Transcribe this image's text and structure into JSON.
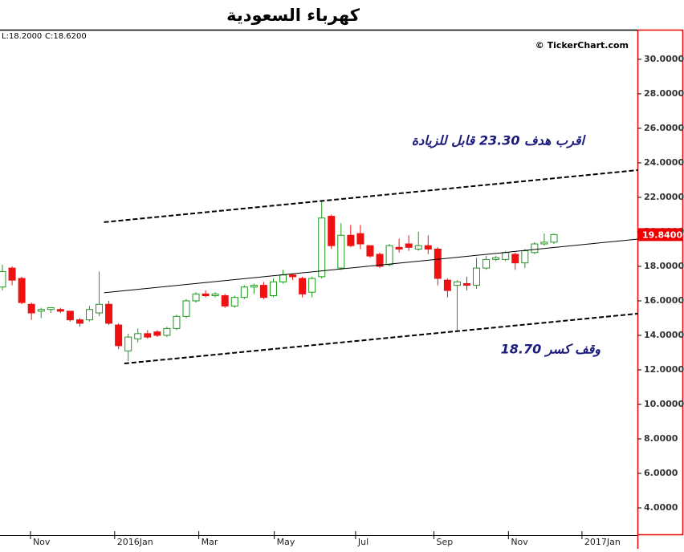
{
  "chart_data": {
    "type": "candlestick",
    "title": "كهرباء السعودية",
    "info": [
      "L:18.2000",
      "C:18.6200"
    ],
    "watermark": "© TickerChart.com",
    "up_color": "#1a9a1a",
    "down_color": "#ee1111",
    "x": [
      0,
      1,
      2,
      3,
      4,
      5,
      6,
      7,
      8,
      9,
      10,
      11,
      12,
      13,
      14,
      15,
      16,
      17,
      18,
      19,
      20,
      21,
      22,
      23,
      24,
      25,
      26,
      27,
      28,
      29,
      30,
      31,
      32,
      33,
      34,
      35,
      36,
      37,
      38,
      39,
      40,
      41,
      42,
      43,
      44,
      45,
      46,
      47,
      48,
      49,
      50,
      51,
      52,
      53,
      54,
      55,
      56,
      57
    ],
    "open": [
      16.8,
      17.9,
      17.3,
      15.8,
      15.4,
      15.5,
      15.5,
      15.4,
      14.9,
      14.9,
      15.3,
      15.8,
      14.6,
      13.1,
      13.8,
      14.1,
      14.2,
      14.0,
      14.4,
      15.1,
      16.0,
      16.4,
      16.3,
      16.3,
      15.7,
      16.2,
      16.8,
      16.9,
      16.3,
      17.1,
      17.5,
      17.3,
      16.5,
      17.4,
      20.9,
      17.9,
      19.8,
      19.9,
      19.2,
      18.7,
      18.1,
      19.1,
      19.3,
      19.0,
      19.2,
      19.0,
      17.2,
      16.9,
      17.0,
      16.9,
      17.9,
      18.4,
      18.4,
      18.7,
      18.2,
      18.8,
      19.3,
      19.4
    ],
    "high": [
      18.1,
      18.0,
      17.4,
      15.9,
      15.6,
      15.6,
      15.6,
      15.4,
      15.0,
      15.7,
      17.7,
      16.0,
      14.7,
      14.1,
      14.4,
      14.3,
      14.3,
      14.5,
      15.2,
      16.1,
      16.5,
      16.6,
      16.5,
      16.4,
      16.3,
      16.9,
      17.0,
      17.1,
      17.3,
      17.8,
      17.6,
      17.4,
      17.4,
      21.8,
      21.0,
      20.5,
      20.4,
      20.4,
      19.2,
      18.8,
      19.3,
      19.6,
      19.8,
      20.0,
      19.8,
      19.1,
      17.3,
      17.2,
      17.4,
      18.5,
      18.6,
      18.6,
      18.9,
      18.8,
      19.0,
      19.4,
      19.9,
      19.9
    ],
    "low": [
      16.6,
      16.9,
      15.8,
      14.9,
      15.0,
      15.3,
      15.3,
      14.8,
      14.5,
      14.8,
      15.1,
      14.6,
      13.2,
      12.5,
      13.6,
      13.8,
      13.9,
      13.9,
      14.3,
      15.0,
      15.9,
      16.2,
      16.2,
      15.6,
      15.6,
      16.1,
      16.4,
      16.1,
      16.2,
      17.0,
      17.2,
      16.2,
      16.2,
      17.3,
      19.0,
      17.8,
      19.1,
      19.0,
      18.5,
      17.9,
      18.0,
      18.8,
      18.9,
      18.9,
      18.7,
      16.9,
      16.2,
      14.2,
      16.6,
      16.7,
      17.8,
      18.3,
      18.3,
      17.8,
      17.9,
      18.7,
      19.2,
      19.3
    ],
    "close": [
      17.7,
      17.2,
      15.9,
      15.3,
      15.5,
      15.6,
      15.4,
      14.9,
      14.7,
      15.5,
      15.8,
      14.7,
      13.4,
      13.9,
      14.1,
      13.9,
      14.0,
      14.4,
      15.1,
      16.0,
      16.4,
      16.3,
      16.4,
      15.7,
      16.2,
      16.8,
      16.9,
      16.2,
      17.1,
      17.5,
      17.4,
      16.4,
      17.3,
      20.8,
      19.2,
      19.8,
      19.2,
      19.3,
      18.6,
      18.0,
      19.2,
      19.0,
      19.1,
      19.2,
      19.0,
      17.3,
      16.6,
      17.1,
      16.9,
      17.9,
      18.4,
      18.5,
      18.8,
      18.2,
      18.9,
      19.3,
      19.4,
      19.84
    ],
    "last_price": {
      "value": 19.84,
      "label": "19.8400"
    },
    "trend_lines": [
      {
        "style": "dashed",
        "x": [
          10.5,
          65.7
        ],
        "y": [
          20.56,
          23.58
        ]
      },
      {
        "style": "solid",
        "x": [
          10.5,
          65.7
        ],
        "y": [
          16.47,
          19.58
        ]
      },
      {
        "style": "dashed",
        "x": [
          12.6,
          65.7
        ],
        "y": [
          12.37,
          15.26
        ]
      }
    ],
    "annotations": [
      "اقرب  هدف  23.30  قابل  للزيادة",
      "وقف كسر 18.70"
    ],
    "xlim": [
      -0.25,
      65.55
    ],
    "xticks": [
      {
        "value": 2.9,
        "label": "Nov"
      },
      {
        "value": 11.6,
        "label": "2016Jan"
      },
      {
        "value": 20.3,
        "label": "Mar"
      },
      {
        "value": 28.1,
        "label": "May"
      },
      {
        "value": 36.5,
        "label": "Jul"
      },
      {
        "value": 44.6,
        "label": "Sep"
      },
      {
        "value": 52.3,
        "label": "Nov"
      },
      {
        "value": 59.9,
        "label": "2017Jan"
      }
    ],
    "ylim": [
      2.42,
      31.67
    ],
    "yticks": [
      {
        "value": 4,
        "label": "4.0000"
      },
      {
        "value": 6,
        "label": "6.0000"
      },
      {
        "value": 8,
        "label": "8.0000"
      },
      {
        "value": 10,
        "label": "10.0000"
      },
      {
        "value": 12,
        "label": "12.0000"
      },
      {
        "value": 14,
        "label": "14.0000"
      },
      {
        "value": 16,
        "label": "16.0000"
      },
      {
        "value": 18,
        "label": "18.0000"
      },
      {
        "value": 20,
        "label": "20.0000"
      },
      {
        "value": 22,
        "label": "22.0000"
      },
      {
        "value": 24,
        "label": "24.0000"
      },
      {
        "value": 26,
        "label": "26.0000"
      },
      {
        "value": 28,
        "label": "28.0000"
      },
      {
        "value": 30,
        "label": "30.0000"
      }
    ]
  }
}
